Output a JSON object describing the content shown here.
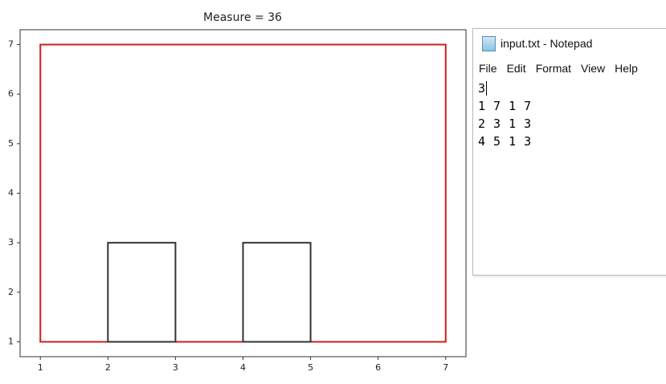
{
  "chart_data": {
    "type": "rectangles",
    "title": "Measure = 36",
    "shapes": [
      {
        "x0": 1,
        "x1": 7,
        "y0": 1,
        "y1": 7,
        "color": "#cc1f1f"
      },
      {
        "x0": 2,
        "x1": 3,
        "y0": 1,
        "y1": 3,
        "color": "#333333"
      },
      {
        "x0": 4,
        "x1": 5,
        "y0": 1,
        "y1": 3,
        "color": "#333333"
      }
    ],
    "xlim": [
      0.7,
      7.3
    ],
    "ylim": [
      0.7,
      7.3
    ],
    "xticks": [
      1,
      2,
      3,
      4,
      5,
      6,
      7
    ],
    "yticks": [
      1,
      2,
      3,
      4,
      5,
      6,
      7
    ]
  },
  "notepad": {
    "title": "input.txt - Notepad",
    "menu": [
      "File",
      "Edit",
      "Format",
      "View",
      "Help"
    ],
    "lines": [
      "3",
      "1 7 1 7",
      "2 3 1 3",
      "4 5 1 3"
    ]
  }
}
